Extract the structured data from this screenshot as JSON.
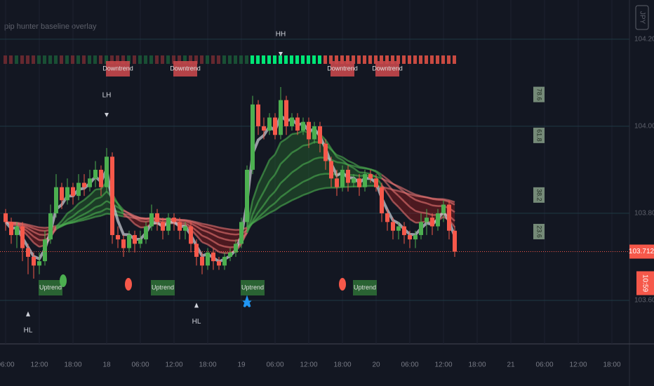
{
  "chart_data": {
    "type": "candlestick",
    "title": "pip hunter baseline overlay",
    "currency": "JPY",
    "open": [
      103.8,
      103.78,
      103.75,
      103.77,
      103.72,
      103.7,
      103.68,
      103.69,
      103.74,
      103.8,
      103.86,
      103.83,
      103.86,
      103.84,
      103.87,
      103.86,
      103.88,
      103.9,
      103.86,
      103.93,
      103.75,
      103.74,
      103.72,
      103.75,
      103.73,
      103.74,
      103.77,
      103.8,
      103.78,
      103.76,
      103.79,
      103.78,
      103.76,
      103.77,
      103.73,
      103.7,
      103.68,
      103.71,
      103.69,
      103.68,
      103.7,
      103.71,
      103.73,
      103.78,
      103.9,
      104.05,
      104.0,
      103.99,
      104.02,
      103.98,
      104.06,
      104.0,
      104.02,
      103.99,
      104.01,
      103.97,
      104.0,
      103.96,
      103.92,
      103.88,
      103.86,
      103.9,
      103.87,
      103.88,
      103.86,
      103.89,
      103.88,
      103.86,
      103.8,
      103.78,
      103.76,
      103.77,
      103.75,
      103.74,
      103.75,
      103.78,
      103.79,
      103.77,
      103.8,
      103.82,
      103.76
    ],
    "high": [
      103.81,
      103.79,
      103.78,
      103.78,
      103.73,
      103.71,
      103.71,
      103.76,
      103.82,
      103.89,
      103.87,
      103.88,
      103.87,
      103.89,
      103.89,
      103.9,
      103.92,
      103.91,
      103.95,
      103.94,
      103.77,
      103.75,
      103.76,
      103.76,
      103.76,
      103.78,
      103.82,
      103.81,
      103.79,
      103.8,
      103.8,
      103.79,
      103.78,
      103.78,
      103.74,
      103.71,
      103.72,
      103.72,
      103.7,
      103.71,
      103.72,
      103.74,
      103.79,
      103.91,
      104.07,
      104.06,
      104.02,
      104.03,
      104.03,
      104.09,
      104.07,
      104.03,
      104.03,
      104.02,
      104.02,
      104.01,
      104.01,
      103.97,
      103.93,
      103.9,
      103.91,
      103.91,
      103.89,
      103.89,
      103.9,
      103.9,
      103.89,
      103.87,
      103.81,
      103.79,
      103.78,
      103.78,
      103.76,
      103.76,
      103.8,
      103.81,
      103.8,
      103.81,
      103.83,
      103.83,
      103.77
    ],
    "low": [
      103.76,
      103.73,
      103.72,
      103.69,
      103.66,
      103.65,
      103.66,
      103.68,
      103.73,
      103.79,
      103.81,
      103.82,
      103.82,
      103.83,
      103.84,
      103.85,
      103.86,
      103.84,
      103.85,
      103.73,
      103.72,
      103.7,
      103.71,
      103.71,
      103.72,
      103.73,
      103.76,
      103.76,
      103.74,
      103.75,
      103.76,
      103.74,
      103.74,
      103.71,
      103.68,
      103.66,
      103.67,
      103.67,
      103.67,
      103.67,
      103.69,
      103.7,
      103.72,
      103.77,
      103.89,
      103.98,
      103.97,
      103.98,
      103.97,
      103.97,
      103.98,
      103.99,
      103.98,
      103.98,
      103.95,
      103.96,
      103.94,
      103.9,
      103.86,
      103.84,
      103.85,
      103.85,
      103.86,
      103.84,
      103.85,
      103.87,
      103.85,
      103.78,
      103.76,
      103.74,
      103.74,
      103.73,
      103.72,
      103.72,
      103.74,
      103.75,
      103.75,
      103.76,
      103.78,
      103.74,
      103.7
    ],
    "close": [
      103.78,
      103.75,
      103.77,
      103.72,
      103.7,
      103.68,
      103.69,
      103.74,
      103.8,
      103.86,
      103.83,
      103.86,
      103.84,
      103.87,
      103.86,
      103.88,
      103.9,
      103.86,
      103.93,
      103.75,
      103.74,
      103.72,
      103.75,
      103.73,
      103.74,
      103.77,
      103.8,
      103.78,
      103.76,
      103.79,
      103.78,
      103.76,
      103.77,
      103.73,
      103.7,
      103.68,
      103.71,
      103.69,
      103.68,
      103.7,
      103.71,
      103.73,
      103.78,
      103.9,
      104.05,
      104.0,
      103.99,
      104.02,
      103.98,
      104.06,
      104.0,
      104.02,
      103.99,
      104.01,
      103.97,
      104.0,
      103.96,
      103.92,
      103.88,
      103.86,
      103.9,
      103.87,
      103.88,
      103.86,
      103.89,
      103.88,
      103.86,
      103.8,
      103.78,
      103.76,
      103.77,
      103.75,
      103.74,
      103.75,
      103.78,
      103.79,
      103.77,
      103.8,
      103.82,
      103.76,
      103.712
    ],
    "timer": "10:59",
    "ylim": [
      103.5,
      104.29
    ],
    "yticks": [
      {
        "value": 103.6,
        "label": "103.600"
      },
      {
        "value": 103.8,
        "label": "103.800"
      },
      {
        "value": 104.0,
        "label": "104.000"
      },
      {
        "value": 104.2,
        "label": "104.200"
      }
    ],
    "xtick_labels": [
      "06:00",
      "12:00",
      "18:00",
      "18",
      "06:00",
      "12:00",
      "18:00",
      "19",
      "06:00",
      "12:00",
      "18:00",
      "20",
      "06:00",
      "12:00",
      "18:00",
      "21",
      "06:00",
      "12:00",
      "18:00"
    ],
    "trend_labels": [
      {
        "text": "Downtrend",
        "bar": 20
      },
      {
        "text": "Downtrend",
        "bar": 32
      },
      {
        "text": "Downtrend",
        "bar": 60
      },
      {
        "text": "Downtrend",
        "bar": 68
      },
      {
        "text": "Uptrend",
        "bar": 8
      },
      {
        "text": "Uptrend",
        "bar": 28
      },
      {
        "text": "Uptrend",
        "bar": 44
      },
      {
        "text": "Uptrend",
        "bar": 64
      }
    ],
    "swing_labels": [
      {
        "text": "HH",
        "bar": 49
      },
      {
        "text": "LH",
        "bar": 18
      },
      {
        "text": "HL",
        "bar": 4
      },
      {
        "text": "HL",
        "bar": 34
      }
    ],
    "fib_levels": [
      {
        "label": "78.6",
        "value": 104.073
      },
      {
        "label": "61.8",
        "value": 103.979
      },
      {
        "label": "38.2",
        "value": 103.842
      },
      {
        "label": "23.6",
        "value": 103.758
      }
    ],
    "colors": {
      "up": "#4caf50",
      "down": "#f6584a"
    }
  }
}
